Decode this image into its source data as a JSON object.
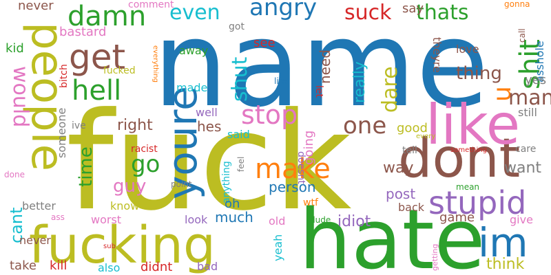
{
  "words": [
    {
      "text": "name",
      "color": "#1f77b4",
      "rotate": 0
    },
    {
      "text": "fuck",
      "color": "#bcbd22",
      "rotate": 0
    },
    {
      "text": "hate",
      "color": "#2ca02c",
      "rotate": 0
    },
    {
      "text": "fucking",
      "color": "#bcbd22",
      "rotate": 0
    },
    {
      "text": "people",
      "color": "#bcbd22",
      "rotate": 90
    },
    {
      "text": "dont",
      "color": "#8c564b",
      "rotate": 0
    },
    {
      "text": "like",
      "color": "#e377c2",
      "rotate": 0
    },
    {
      "text": "youre",
      "color": "#1f77b4",
      "rotate": -90
    },
    {
      "text": "get",
      "color": "#8c564b",
      "rotate": 0
    },
    {
      "text": "im",
      "color": "#1f77b4",
      "rotate": 0
    },
    {
      "text": "stupid",
      "color": "#9467bd",
      "rotate": 0
    },
    {
      "text": "hell",
      "color": "#2ca02c",
      "rotate": 0
    },
    {
      "text": "damn",
      "color": "#2ca02c",
      "rotate": 0
    },
    {
      "text": "angry",
      "color": "#1f77b4",
      "rotate": 0
    },
    {
      "text": "suck",
      "color": "#d62728",
      "rotate": 0
    },
    {
      "text": "thats",
      "color": "#2ca02c",
      "rotate": 0
    },
    {
      "text": "shit",
      "color": "#2ca02c",
      "rotate": -90
    },
    {
      "text": "u",
      "color": "#ff7f0e",
      "rotate": -90
    },
    {
      "text": "even",
      "color": "#17becf",
      "rotate": 0
    },
    {
      "text": "would",
      "color": "#e377c2",
      "rotate": 90
    },
    {
      "text": "stop",
      "color": "#e377c2",
      "rotate": 0
    },
    {
      "text": "one",
      "color": "#8c564b",
      "rotate": 0
    },
    {
      "text": "shut",
      "color": "#17becf",
      "rotate": -90
    },
    {
      "text": "make",
      "color": "#ff7f0e",
      "rotate": 0
    },
    {
      "text": "go",
      "color": "#2ca02c",
      "rotate": 0
    },
    {
      "text": "time",
      "color": "#2ca02c",
      "rotate": -90
    },
    {
      "text": "guy",
      "color": "#e377c2",
      "rotate": 0
    },
    {
      "text": "cant",
      "color": "#17becf",
      "rotate": -90
    },
    {
      "text": "man",
      "color": "#8c564b",
      "rotate": 0
    },
    {
      "text": "dare",
      "color": "#bcbd22",
      "rotate": -90
    },
    {
      "text": "really",
      "color": "#17becf",
      "rotate": -90
    },
    {
      "text": "need",
      "color": "#8c564b",
      "rotate": -90
    },
    {
      "text": "thing",
      "color": "#8c564b",
      "rotate": 0
    },
    {
      "text": "right",
      "color": "#8c564b",
      "rotate": 0
    },
    {
      "text": "hes",
      "color": "#8c564b",
      "rotate": 0
    },
    {
      "text": "want",
      "color": "#7f7f7f",
      "rotate": 0
    },
    {
      "text": "way",
      "color": "#8c564b",
      "rotate": 0
    },
    {
      "text": "person",
      "color": "#1f77b4",
      "rotate": 0
    },
    {
      "text": "idiot",
      "color": "#9467bd",
      "rotate": 0
    },
    {
      "text": "much",
      "color": "#1f77b4",
      "rotate": 0
    },
    {
      "text": "post",
      "color": "#9467bd",
      "rotate": 0
    },
    {
      "text": "good",
      "color": "#bcbd22",
      "rotate": 0
    },
    {
      "text": "going",
      "color": "#e377c2",
      "rotate": -90
    },
    {
      "text": "never",
      "color": "#8c564b",
      "rotate": 0
    },
    {
      "text": "bastard",
      "color": "#e377c2",
      "rotate": 0
    },
    {
      "text": "kid",
      "color": "#2ca02c",
      "rotate": 0
    },
    {
      "text": "comment",
      "color": "#e377c2",
      "rotate": 0
    },
    {
      "text": "got",
      "color": "#7f7f7f",
      "rotate": 0
    },
    {
      "text": "see",
      "color": "#d62728",
      "rotate": 0
    },
    {
      "text": "say",
      "color": "#8c564b",
      "rotate": 0
    },
    {
      "text": "gonna",
      "color": "#ff7f0e",
      "rotate": 0
    },
    {
      "text": "away",
      "color": "#2ca02c",
      "rotate": 0
    },
    {
      "text": "asshole",
      "color": "#1f77b4",
      "rotate": -90
    },
    {
      "text": "love",
      "color": "#8c564b",
      "rotate": 0
    },
    {
      "text": "theyre",
      "color": "#8c564b",
      "rotate": 90
    },
    {
      "text": "call",
      "color": "#8c564b",
      "rotate": -90
    },
    {
      "text": "yes",
      "color": "#7f7f7f",
      "rotate": 0
    },
    {
      "text": "made",
      "color": "#17becf",
      "rotate": 0
    },
    {
      "text": "fucked",
      "color": "#bcbd22",
      "rotate": 0
    },
    {
      "text": "bitch",
      "color": "#d62728",
      "rotate": -90
    },
    {
      "text": "everything",
      "color": "#ff7f0e",
      "rotate": 90
    },
    {
      "text": "life",
      "color": "#1f77b4",
      "rotate": 0
    },
    {
      "text": "let",
      "color": "#d62728",
      "rotate": 90
    },
    {
      "text": "still",
      "color": "#7f7f7f",
      "rotate": 0
    },
    {
      "text": "well",
      "color": "#9467bd",
      "rotate": 0
    },
    {
      "text": "said",
      "color": "#17becf",
      "rotate": 0
    },
    {
      "text": "ive",
      "color": "#7f7f7f",
      "rotate": 0
    },
    {
      "text": "someone",
      "color": "#7f7f7f",
      "rotate": -90
    },
    {
      "text": "racist",
      "color": "#d62728",
      "rotate": 0
    },
    {
      "text": "every",
      "color": "#bcbd22",
      "rotate": 0
    },
    {
      "text": "something",
      "color": "#d62728",
      "rotate": 0
    },
    {
      "text": "care",
      "color": "#7f7f7f",
      "rotate": 0
    },
    {
      "text": "tell",
      "color": "#7f7f7f",
      "rotate": 0
    },
    {
      "text": "doesnt",
      "color": "#9467bd",
      "rotate": 90
    },
    {
      "text": "anything",
      "color": "#17becf",
      "rotate": -90
    },
    {
      "text": "feel",
      "color": "#7f7f7f",
      "rotate": -90
    },
    {
      "text": "done",
      "color": "#e377c2",
      "rotate": 0
    },
    {
      "text": "point",
      "color": "#7f7f7f",
      "rotate": 0
    },
    {
      "text": "mean",
      "color": "#2ca02c",
      "rotate": 0
    },
    {
      "text": "back",
      "color": "#8c564b",
      "rotate": 0
    },
    {
      "text": "wtf",
      "color": "#ff7f0e",
      "rotate": 0
    },
    {
      "text": "oh",
      "color": "#1f77b4",
      "rotate": 0
    },
    {
      "text": "better",
      "color": "#7f7f7f",
      "rotate": 0
    },
    {
      "text": "know",
      "color": "#bcbd22",
      "rotate": 0
    },
    {
      "text": "ass",
      "color": "#e377c2",
      "rotate": 0
    },
    {
      "text": "worst",
      "color": "#e377c2",
      "rotate": 0
    },
    {
      "text": "look",
      "color": "#9467bd",
      "rotate": 0
    },
    {
      "text": "old",
      "color": "#e377c2",
      "rotate": 0
    },
    {
      "text": "dude",
      "color": "#2ca02c",
      "rotate": 0
    },
    {
      "text": "game",
      "color": "#8c564b",
      "rotate": 0
    },
    {
      "text": "give",
      "color": "#e377c2",
      "rotate": 0
    },
    {
      "text": "never",
      "color": "#8c564b",
      "rotate": 0
    },
    {
      "text": "yeah",
      "color": "#17becf",
      "rotate": -90
    },
    {
      "text": "sub",
      "color": "#d62728",
      "rotate": 0
    },
    {
      "text": "take",
      "color": "#8c564b",
      "rotate": 0
    },
    {
      "text": "kill",
      "color": "#d62728",
      "rotate": 0
    },
    {
      "text": "also",
      "color": "#17becf",
      "rotate": 0
    },
    {
      "text": "didnt",
      "color": "#d62728",
      "rotate": 0
    },
    {
      "text": "bad",
      "color": "#9467bd",
      "rotate": 0
    },
    {
      "text": "getting",
      "color": "#e377c2",
      "rotate": -90
    },
    {
      "text": "think",
      "color": "#bcbd22",
      "rotate": 0
    }
  ]
}
